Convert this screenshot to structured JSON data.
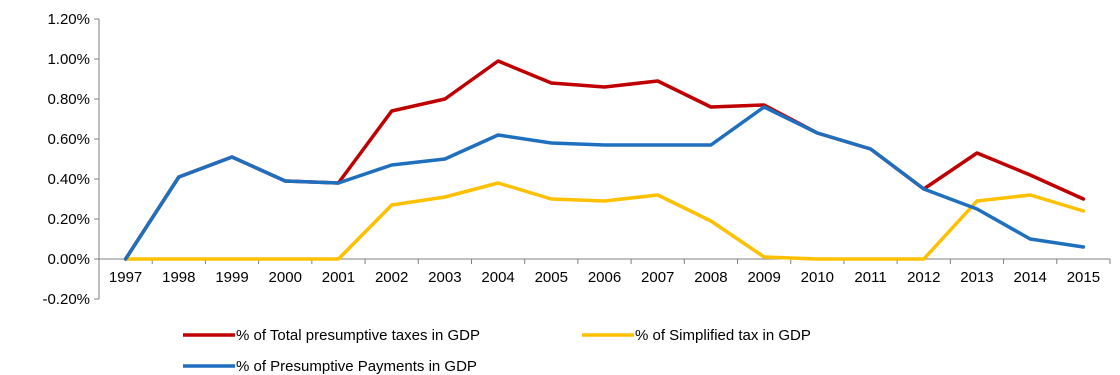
{
  "chart_data": {
    "type": "line",
    "x": [
      "1997",
      "1998",
      "1999",
      "2000",
      "2001",
      "2002",
      "2003",
      "2004",
      "2005",
      "2006",
      "2007",
      "2008",
      "2009",
      "2010",
      "2011",
      "2012",
      "2013",
      "2014",
      "2015"
    ],
    "ylim": [
      -0.2,
      1.2
    ],
    "yticks": [
      "-0.20%",
      "0.00%",
      "0.20%",
      "0.40%",
      "0.60%",
      "0.80%",
      "1.00%",
      "1.20%"
    ],
    "ytick_values": [
      -0.2,
      0.0,
      0.2,
      0.4,
      0.6,
      0.8,
      1.0,
      1.2
    ],
    "unit": "%",
    "grid": false,
    "legend_position": "bottom",
    "series": [
      {
        "name": "% of Total presumptive taxes in GDP",
        "color": "#c00000",
        "values": [
          0.0,
          0.41,
          0.51,
          0.39,
          0.38,
          0.74,
          0.8,
          0.99,
          0.88,
          0.86,
          0.89,
          0.76,
          0.77,
          0.63,
          0.55,
          0.35,
          0.53,
          0.42,
          0.3
        ]
      },
      {
        "name": "% of Simplified tax in GDP",
        "color": "#ffc000",
        "values": [
          0.0,
          0.0,
          0.0,
          0.0,
          0.0,
          0.27,
          0.31,
          0.38,
          0.3,
          0.29,
          0.32,
          0.19,
          0.01,
          0.0,
          0.0,
          0.0,
          0.29,
          0.32,
          0.24
        ]
      },
      {
        "name": "% of Presumptive Payments in GDP",
        "color": "#1f6fbf",
        "values": [
          0.0,
          0.41,
          0.51,
          0.39,
          0.38,
          0.47,
          0.5,
          0.62,
          0.58,
          0.57,
          0.57,
          0.57,
          0.76,
          0.63,
          0.55,
          0.35,
          0.25,
          0.1,
          0.06
        ]
      }
    ]
  }
}
